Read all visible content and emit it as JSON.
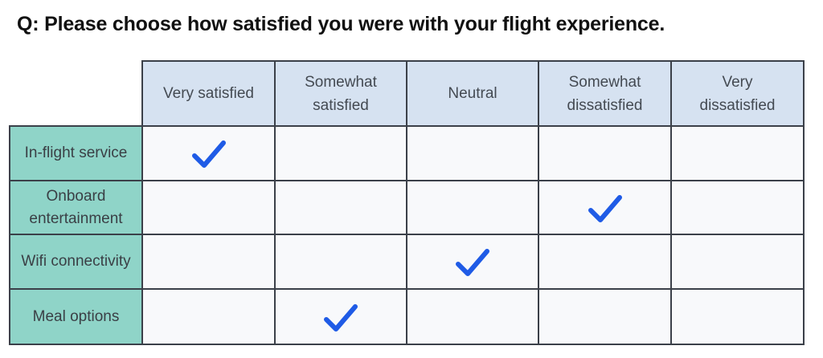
{
  "question": "Q: Please choose how satisfied you were with your flight experience.",
  "columns": [
    "Very satisfied",
    "Somewhat satisfied",
    "Neutral",
    "Somewhat dissatisfied",
    "Very dissatisfied"
  ],
  "rows": [
    {
      "label": "In-flight service",
      "selected": 0
    },
    {
      "label": "Onboard entertainment",
      "selected": 3
    },
    {
      "label": "Wifi connectivity",
      "selected": 2
    },
    {
      "label": "Meal options",
      "selected": 1
    }
  ],
  "colors": {
    "header_bg": "#d6e2f1",
    "row_label_bg": "#8fd4c8",
    "cell_bg": "#f8f9fb",
    "grid": "#3b4049",
    "check": "#1f5be6"
  },
  "icons": {
    "check": "check-icon"
  }
}
